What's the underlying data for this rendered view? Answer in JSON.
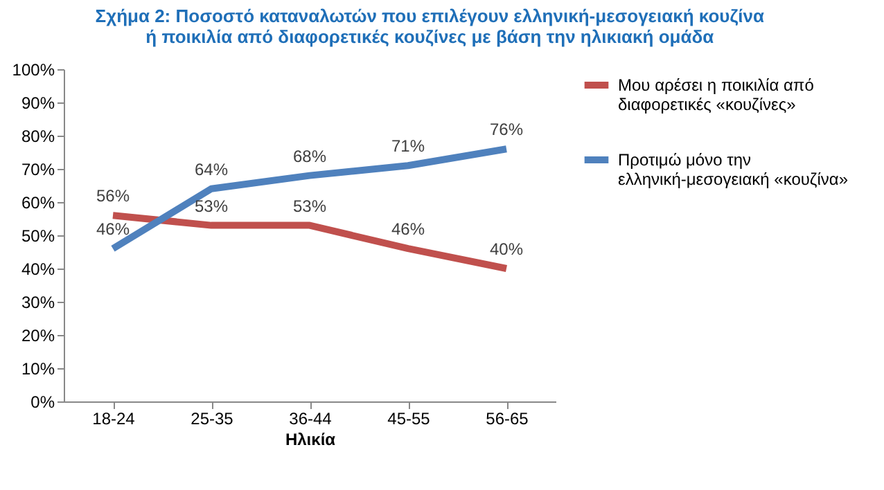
{
  "chart_data": {
    "type": "line",
    "title": "Σχήμα 2: Ποσοστό καταναλωτών που επιλέγουν ελληνική-μεσογειακή κουζίνα ή ποικιλία από διαφορετικές κουζίνες με βάση την ηλικιακή ομάδα",
    "xlabel": "Ηλικία",
    "categories": [
      "18-24",
      "25-35",
      "36-44",
      "45-55",
      "56-65"
    ],
    "series": [
      {
        "name": "Μου αρέσει η ποικιλία από διαφορετικές «κουζίνες»",
        "color": "#c0504d",
        "values": [
          56,
          53,
          53,
          46,
          40
        ],
        "value_labels": [
          "56%",
          "53%",
          "53%",
          "46%",
          "40%"
        ]
      },
      {
        "name": "Προτιμώ μόνο την ελληνική-μεσογειακή «κουζίνα»",
        "color": "#4f81bd",
        "values": [
          46,
          64,
          68,
          71,
          76
        ],
        "value_labels": [
          "46%",
          "64%",
          "68%",
          "71%",
          "76%"
        ]
      }
    ],
    "ylim": [
      0,
      100
    ],
    "yticks": [
      {
        "value": 0,
        "label": "0%"
      },
      {
        "value": 10,
        "label": "10%"
      },
      {
        "value": 20,
        "label": "20%"
      },
      {
        "value": 30,
        "label": "30%"
      },
      {
        "value": 40,
        "label": "40%"
      },
      {
        "value": 50,
        "label": "50%"
      },
      {
        "value": 60,
        "label": "60%"
      },
      {
        "value": 70,
        "label": "70%"
      },
      {
        "value": 80,
        "label": "80%"
      },
      {
        "value": 90,
        "label": "90%"
      },
      {
        "value": 100,
        "label": "100%"
      }
    ],
    "grid": false,
    "legend": "right",
    "marker": "none",
    "line_style": "solid"
  }
}
